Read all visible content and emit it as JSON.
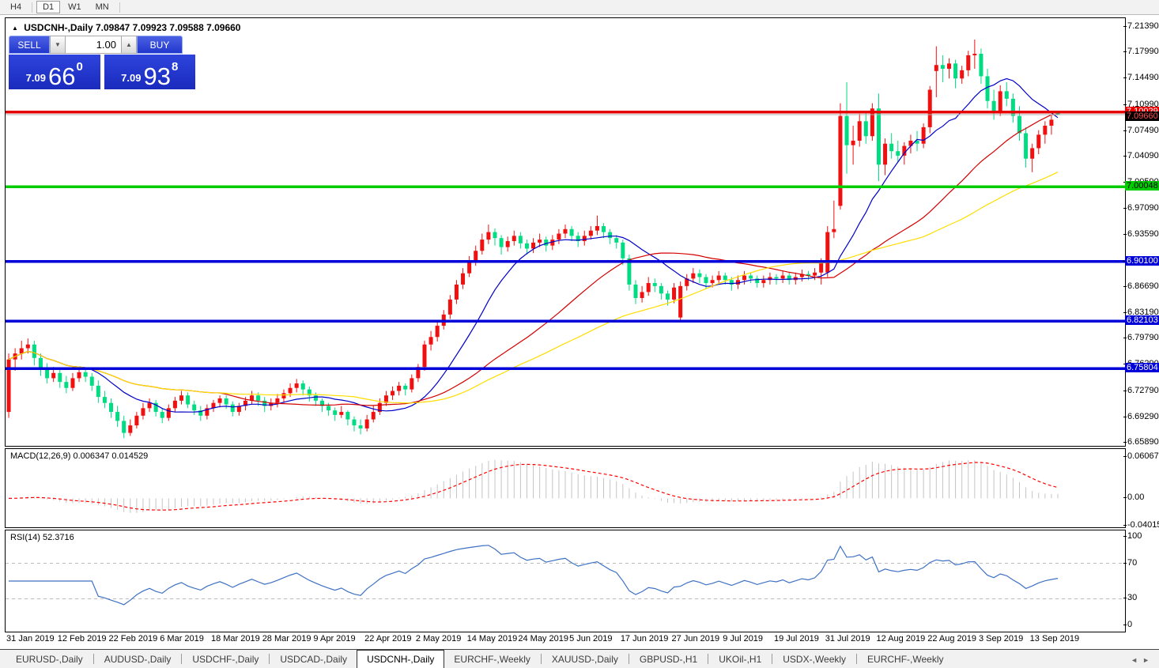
{
  "toolbar": {
    "timeframes": [
      {
        "label": "H4",
        "active": false
      },
      {
        "label": "D1",
        "active": true
      },
      {
        "label": "W1",
        "active": false
      },
      {
        "label": "MN",
        "active": false
      }
    ]
  },
  "chart": {
    "title_symbol": "USDCNH-,Daily",
    "title_ohlc": "7.09847 7.09923 7.09588 7.09660",
    "collapse_arrow": "▲",
    "trade_panel": {
      "sell_label": "SELL",
      "buy_label": "BUY",
      "volume": "1.00",
      "sell_price_small": "7.09",
      "sell_price_big": "66",
      "sell_price_sup": "0",
      "buy_price_small": "7.09",
      "buy_price_big": "93",
      "buy_price_sup": "8"
    }
  },
  "chart_data": {
    "type": "candlestick",
    "symbol": "USDCNH",
    "timeframe": "Daily",
    "ylim": [
      6.6547,
      7.2255
    ],
    "grid": false,
    "colors": {
      "bull": "#f01010",
      "bear": "#00dc82",
      "ma_fast": "#0000c8",
      "ma_mid": "#d40000",
      "ma_slow": "#ffdd00",
      "macd_hist": "#c4c4c4",
      "macd_signal": "#ff0000",
      "rsi_line": "#3e71c4",
      "bid_line": "#b0b0b0"
    },
    "moving_averages": [
      {
        "period": 13,
        "color": "#0000c8"
      },
      {
        "period": 34,
        "color": "#d40000"
      },
      {
        "period": 55,
        "color": "#ffdd00"
      }
    ],
    "price_axis_ticks": [
      7.2139,
      7.1799,
      7.1449,
      7.1099,
      7.0749,
      7.0409,
      7.0059,
      6.9709,
      6.9359,
      6.9009,
      6.8669,
      6.8319,
      6.7979,
      6.7629,
      6.7279,
      6.6929,
      6.6589
    ],
    "levels": [
      {
        "value": 7.10029,
        "label": "7.10029",
        "color": "#e60000",
        "text_color": "#ffffff"
      },
      {
        "value": 7.00048,
        "label": "7.00048",
        "color": "#00cc00",
        "text_color": "#000000"
      },
      {
        "value": 6.901,
        "label": "6.90100",
        "color": "#0000d8",
        "text_color": "#ffffff"
      },
      {
        "value": 6.82103,
        "label": "6.82103",
        "color": "#0000d8",
        "text_color": "#ffffff"
      },
      {
        "value": 6.75804,
        "label": "6.75804",
        "color": "#0000d8",
        "text_color": "#ffffff"
      }
    ],
    "current_price": {
      "value": 7.0966,
      "label": "7.09660",
      "bg": "#000000",
      "text_color": "#ff5050"
    },
    "x_ticks": [
      {
        "i": 0,
        "label": "31 Jan 2019"
      },
      {
        "i": 8,
        "label": "12 Feb 2019"
      },
      {
        "i": 16,
        "label": "22 Feb 2019"
      },
      {
        "i": 24,
        "label": "6 Mar 2019"
      },
      {
        "i": 32,
        "label": "18 Mar 2019"
      },
      {
        "i": 40,
        "label": "28 Mar 2019"
      },
      {
        "i": 48,
        "label": "9 Apr 2019"
      },
      {
        "i": 56,
        "label": "22 Apr 2019"
      },
      {
        "i": 64,
        "label": "2 May 2019"
      },
      {
        "i": 72,
        "label": "14 May 2019"
      },
      {
        "i": 80,
        "label": "24 May 2019"
      },
      {
        "i": 88,
        "label": "5 Jun 2019"
      },
      {
        "i": 96,
        "label": "17 Jun 2019"
      },
      {
        "i": 104,
        "label": "27 Jun 2019"
      },
      {
        "i": 112,
        "label": "9 Jul 2019"
      },
      {
        "i": 120,
        "label": "19 Jul 2019"
      },
      {
        "i": 128,
        "label": "31 Jul 2019"
      },
      {
        "i": 136,
        "label": "12 Aug 2019"
      },
      {
        "i": 144,
        "label": "22 Aug 2019"
      },
      {
        "i": 152,
        "label": "3 Sep 2019"
      },
      {
        "i": 160,
        "label": "13 Sep 2019"
      }
    ],
    "candles": [
      [
        6.7,
        6.778,
        6.692,
        6.77
      ],
      [
        6.77,
        6.785,
        6.755,
        6.778
      ],
      [
        6.778,
        6.795,
        6.77,
        6.785
      ],
      [
        6.785,
        6.798,
        6.778,
        6.79
      ],
      [
        6.79,
        6.795,
        6.762,
        6.772
      ],
      [
        6.772,
        6.778,
        6.748,
        6.758
      ],
      [
        6.758,
        6.765,
        6.738,
        6.745
      ],
      [
        6.745,
        6.76,
        6.74,
        6.752
      ],
      [
        6.752,
        6.758,
        6.732,
        6.74
      ],
      [
        6.74,
        6.748,
        6.725,
        6.732
      ],
      [
        6.732,
        6.752,
        6.728,
        6.745
      ],
      [
        6.745,
        6.76,
        6.74,
        6.753
      ],
      [
        6.753,
        6.758,
        6.74,
        6.747
      ],
      [
        6.747,
        6.752,
        6.728,
        6.735
      ],
      [
        6.735,
        6.742,
        6.712,
        6.72
      ],
      [
        6.72,
        6.728,
        6.705,
        6.712
      ],
      [
        6.712,
        6.718,
        6.692,
        6.7
      ],
      [
        6.7,
        6.708,
        6.68,
        6.688
      ],
      [
        6.688,
        6.695,
        6.665,
        6.672
      ],
      [
        6.672,
        6.69,
        6.668,
        6.682
      ],
      [
        6.682,
        6.7,
        6.678,
        6.695
      ],
      [
        6.695,
        6.712,
        6.69,
        6.705
      ],
      [
        6.705,
        6.718,
        6.7,
        6.712
      ],
      [
        6.712,
        6.716,
        6.694,
        6.7
      ],
      [
        6.7,
        6.705,
        6.685,
        6.692
      ],
      [
        6.692,
        6.71,
        6.688,
        6.705
      ],
      [
        6.705,
        6.72,
        6.7,
        6.715
      ],
      [
        6.715,
        6.728,
        6.71,
        6.722
      ],
      [
        6.722,
        6.726,
        6.705,
        6.71
      ],
      [
        6.71,
        6.715,
        6.696,
        6.702
      ],
      [
        6.702,
        6.708,
        6.688,
        6.695
      ],
      [
        6.695,
        6.71,
        6.69,
        6.705
      ],
      [
        6.705,
        6.716,
        6.7,
        6.712
      ],
      [
        6.712,
        6.722,
        6.706,
        6.718
      ],
      [
        6.718,
        6.722,
        6.704,
        6.71
      ],
      [
        6.71,
        6.714,
        6.694,
        6.7
      ],
      [
        6.7,
        6.712,
        6.695,
        6.708
      ],
      [
        6.708,
        6.72,
        6.702,
        6.715
      ],
      [
        6.715,
        6.728,
        6.71,
        6.722
      ],
      [
        6.722,
        6.726,
        6.708,
        6.715
      ],
      [
        6.715,
        6.72,
        6.7,
        6.708
      ],
      [
        6.708,
        6.718,
        6.702,
        6.712
      ],
      [
        6.712,
        6.724,
        6.706,
        6.718
      ],
      [
        6.718,
        6.73,
        6.712,
        6.725
      ],
      [
        6.725,
        6.738,
        6.72,
        6.732
      ],
      [
        6.732,
        6.744,
        6.726,
        6.738
      ],
      [
        6.738,
        6.742,
        6.722,
        6.73
      ],
      [
        6.73,
        6.734,
        6.714,
        6.722
      ],
      [
        6.722,
        6.726,
        6.708,
        6.715
      ],
      [
        6.715,
        6.718,
        6.7,
        6.708
      ],
      [
        6.708,
        6.712,
        6.695,
        6.702
      ],
      [
        6.702,
        6.706,
        6.688,
        6.696
      ],
      [
        6.696,
        6.708,
        6.692,
        6.7
      ],
      [
        6.7,
        6.702,
        6.682,
        6.69
      ],
      [
        6.69,
        6.694,
        6.674,
        6.682
      ],
      [
        6.682,
        6.69,
        6.67,
        6.678
      ],
      [
        6.678,
        6.696,
        6.674,
        6.69
      ],
      [
        6.69,
        6.708,
        6.686,
        6.7
      ],
      [
        6.7,
        6.718,
        6.696,
        6.712
      ],
      [
        6.712,
        6.728,
        6.708,
        6.722
      ],
      [
        6.722,
        6.734,
        6.716,
        6.728
      ],
      [
        6.728,
        6.74,
        6.722,
        6.735
      ],
      [
        6.735,
        6.738,
        6.722,
        6.73
      ],
      [
        6.73,
        6.75,
        6.726,
        6.745
      ],
      [
        6.745,
        6.764,
        6.74,
        6.76
      ],
      [
        6.76,
        6.795,
        6.755,
        6.79
      ],
      [
        6.79,
        6.808,
        6.782,
        6.8
      ],
      [
        6.8,
        6.82,
        6.794,
        6.815
      ],
      [
        6.815,
        6.836,
        6.81,
        6.83
      ],
      [
        6.83,
        6.856,
        6.824,
        6.85
      ],
      [
        6.85,
        6.876,
        6.844,
        6.87
      ],
      [
        6.87,
        6.892,
        6.864,
        6.885
      ],
      [
        6.885,
        6.908,
        6.88,
        6.9
      ],
      [
        6.9,
        6.922,
        6.895,
        6.915
      ],
      [
        6.915,
        6.938,
        6.91,
        6.93
      ],
      [
        6.93,
        6.95,
        6.924,
        6.94
      ],
      [
        6.94,
        6.945,
        6.922,
        6.932
      ],
      [
        6.932,
        6.936,
        6.91,
        6.92
      ],
      [
        6.92,
        6.934,
        6.914,
        6.928
      ],
      [
        6.928,
        6.942,
        6.922,
        6.935
      ],
      [
        6.935,
        6.94,
        6.918,
        6.925
      ],
      [
        6.925,
        6.93,
        6.91,
        6.918
      ],
      [
        6.918,
        6.932,
        6.912,
        6.926
      ],
      [
        6.926,
        6.938,
        6.92,
        6.93
      ],
      [
        6.93,
        6.934,
        6.914,
        6.922
      ],
      [
        6.922,
        6.936,
        6.916,
        6.93
      ],
      [
        6.93,
        6.944,
        6.924,
        6.938
      ],
      [
        6.938,
        6.95,
        6.932,
        6.944
      ],
      [
        6.944,
        6.948,
        6.928,
        6.935
      ],
      [
        6.935,
        6.94,
        6.92,
        6.928
      ],
      [
        6.928,
        6.942,
        6.922,
        6.935
      ],
      [
        6.935,
        6.948,
        6.93,
        6.942
      ],
      [
        6.942,
        6.962,
        6.936,
        6.948
      ],
      [
        6.948,
        6.952,
        6.932,
        6.94
      ],
      [
        6.94,
        6.944,
        6.924,
        6.932
      ],
      [
        6.932,
        6.936,
        6.918,
        6.926
      ],
      [
        6.926,
        6.93,
        6.896,
        6.905
      ],
      [
        6.905,
        6.91,
        6.862,
        6.87
      ],
      [
        6.87,
        6.876,
        6.844,
        6.852
      ],
      [
        6.852,
        6.868,
        6.846,
        6.86
      ],
      [
        6.86,
        6.88,
        6.855,
        6.872
      ],
      [
        6.872,
        6.878,
        6.86,
        6.868
      ],
      [
        6.868,
        6.872,
        6.85,
        6.858
      ],
      [
        6.858,
        6.862,
        6.842,
        6.85
      ],
      [
        6.85,
        6.872,
        6.845,
        6.866
      ],
      [
        6.826,
        6.874,
        6.821,
        6.868
      ],
      [
        6.868,
        6.884,
        6.862,
        6.878
      ],
      [
        6.878,
        6.892,
        6.872,
        6.885
      ],
      [
        6.885,
        6.89,
        6.872,
        6.88
      ],
      [
        6.88,
        6.884,
        6.864,
        6.872
      ],
      [
        6.872,
        6.882,
        6.866,
        6.876
      ],
      [
        6.876,
        6.888,
        6.87,
        6.882
      ],
      [
        6.882,
        6.886,
        6.87,
        6.876
      ],
      [
        6.876,
        6.88,
        6.862,
        6.87
      ],
      [
        6.87,
        6.882,
        6.864,
        6.876
      ],
      [
        6.876,
        6.888,
        6.87,
        6.882
      ],
      [
        6.882,
        6.886,
        6.872,
        6.878
      ],
      [
        6.878,
        6.882,
        6.866,
        6.872
      ],
      [
        6.872,
        6.882,
        6.866,
        6.876
      ],
      [
        6.876,
        6.886,
        6.87,
        6.88
      ],
      [
        6.88,
        6.884,
        6.87,
        6.878
      ],
      [
        6.878,
        6.888,
        6.872,
        6.882
      ],
      [
        6.882,
        6.886,
        6.87,
        6.876
      ],
      [
        6.876,
        6.886,
        6.87,
        6.88
      ],
      [
        6.88,
        6.89,
        6.874,
        6.884
      ],
      [
        6.884,
        6.888,
        6.876,
        6.882
      ],
      [
        6.882,
        6.892,
        6.876,
        6.886
      ],
      [
        6.886,
        6.905,
        6.87,
        6.9
      ],
      [
        6.886,
        6.948,
        6.88,
        6.94
      ],
      [
        6.94,
        6.982,
        6.932,
        6.944
      ],
      [
        6.975,
        7.112,
        6.97,
        7.095
      ],
      [
        7.095,
        7.14,
        7.018,
        7.056
      ],
      [
        7.056,
        7.082,
        7.03,
        7.062
      ],
      [
        7.062,
        7.098,
        7.054,
        7.088
      ],
      [
        7.088,
        7.102,
        7.058,
        7.068
      ],
      [
        7.068,
        7.112,
        7.062,
        7.105
      ],
      [
        7.105,
        7.125,
        7.008,
        7.03
      ],
      [
        7.03,
        7.065,
        7.016,
        7.058
      ],
      [
        7.058,
        7.072,
        7.038,
        7.048
      ],
      [
        7.048,
        7.062,
        7.034,
        7.042
      ],
      [
        7.042,
        7.06,
        7.03,
        7.055
      ],
      [
        7.055,
        7.07,
        7.045,
        7.062
      ],
      [
        7.062,
        7.075,
        7.048,
        7.058
      ],
      [
        7.058,
        7.085,
        7.052,
        7.08
      ],
      [
        7.08,
        7.135,
        7.072,
        7.13
      ],
      [
        7.155,
        7.188,
        7.12,
        7.163
      ],
      [
        7.163,
        7.176,
        7.14,
        7.158
      ],
      [
        7.158,
        7.172,
        7.145,
        7.165
      ],
      [
        7.165,
        7.17,
        7.132,
        7.145
      ],
      [
        7.145,
        7.162,
        7.138,
        7.156
      ],
      [
        7.156,
        7.182,
        7.148,
        7.176
      ],
      [
        7.176,
        7.197,
        7.158,
        7.178
      ],
      [
        7.178,
        7.185,
        7.138,
        7.148
      ],
      [
        7.148,
        7.158,
        7.105,
        7.115
      ],
      [
        7.115,
        7.13,
        7.09,
        7.102
      ],
      [
        7.102,
        7.136,
        7.095,
        7.128
      ],
      [
        7.128,
        7.14,
        7.108,
        7.118
      ],
      [
        7.118,
        7.125,
        7.086,
        7.095
      ],
      [
        7.095,
        7.108,
        7.062,
        7.072
      ],
      [
        7.072,
        7.08,
        7.026,
        7.038
      ],
      [
        7.038,
        7.058,
        7.02,
        7.052
      ],
      [
        7.052,
        7.076,
        7.044,
        7.07
      ],
      [
        7.07,
        7.088,
        7.058,
        7.082
      ],
      [
        7.082,
        7.096,
        7.07,
        7.09
      ],
      [
        7.0985,
        7.0992,
        7.0959,
        7.0966
      ]
    ],
    "macd": {
      "label": "MACD(12,26,9)",
      "values_text": "0.006347 0.014529",
      "fast": 12,
      "slow": 26,
      "signal": 9,
      "ylim": [
        -0.0425,
        0.0725
      ],
      "axis_labels": [
        {
          "v": 0.060674,
          "t": "0.060674"
        },
        {
          "v": 0,
          "t": "0.00"
        },
        {
          "v": -0.040152,
          "t": "-0.040152"
        }
      ]
    },
    "rsi": {
      "label": "RSI(14)",
      "value_text": "52.3716",
      "period": 14,
      "ylim": [
        -7,
        107
      ],
      "level_lines": [
        70,
        30
      ],
      "axis_labels": [
        100,
        70,
        30,
        0
      ]
    }
  },
  "tabs": {
    "items": [
      {
        "label": "EURUSD-,Daily",
        "active": false
      },
      {
        "label": "AUDUSD-,Daily",
        "active": false
      },
      {
        "label": "USDCHF-,Daily",
        "active": false
      },
      {
        "label": "USDCAD-,Daily",
        "active": false
      },
      {
        "label": "USDCNH-,Daily",
        "active": true
      },
      {
        "label": "EURCHF-,Weekly",
        "active": false
      },
      {
        "label": "XAUUSD-,Daily",
        "active": false
      },
      {
        "label": "GBPUSD-,H1",
        "active": false
      },
      {
        "label": "UKOil-,H1",
        "active": false
      },
      {
        "label": "USDX-,Weekly",
        "active": false
      },
      {
        "label": "EURCHF-,Weekly",
        "active": false
      }
    ],
    "scroll_left": "◄",
    "scroll_right": "►"
  }
}
